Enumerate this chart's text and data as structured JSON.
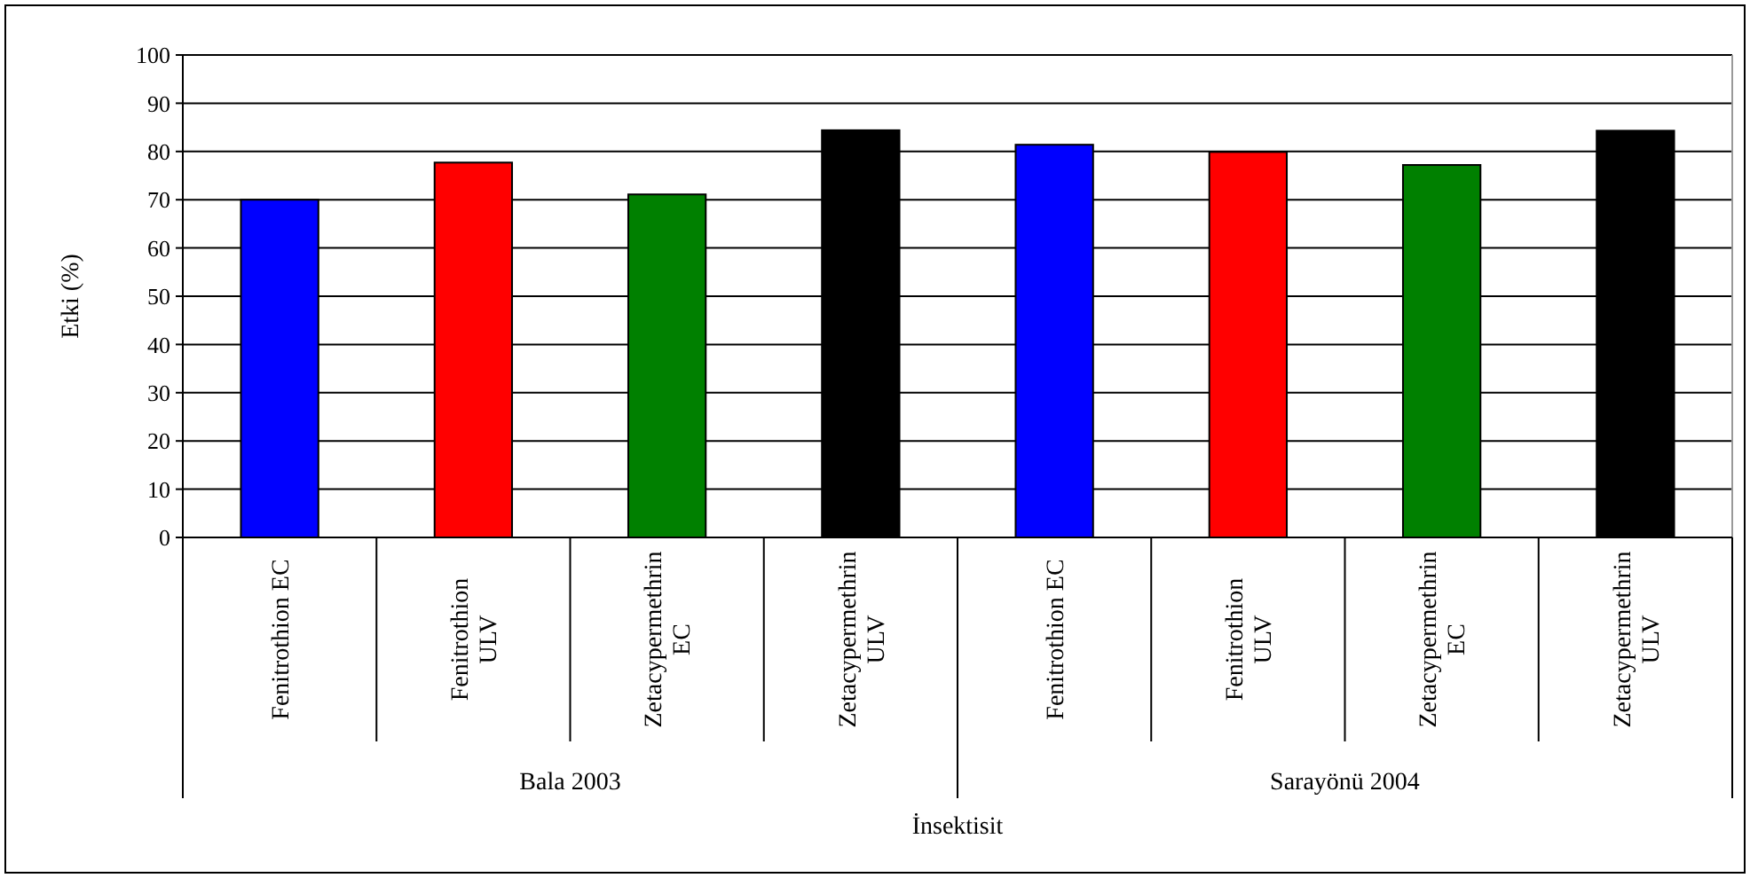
{
  "chart_data": {
    "type": "bar",
    "xlabel": "İnsektisit",
    "ylabel": "Etki (%)",
    "categories": [
      "Fenitrothion EC",
      "Fenitrothion ULV",
      "Zetacypermethrin EC",
      "Zetacypermethrin ULV",
      "Fenitrothion EC",
      "Fenitrothion ULV",
      "Zetacypermethrin EC",
      "Zetacypermethrin ULV"
    ],
    "values": [
      70,
      77.7,
      71.1,
      84.4,
      81.4,
      79.9,
      77.2,
      84.3
    ],
    "colors": [
      "#0000ff",
      "#ff0000",
      "#008000",
      "#000000",
      "#0000ff",
      "#ff0000",
      "#008000",
      "#000000"
    ],
    "ylim": [
      0,
      100
    ],
    "yticks": [
      0,
      10,
      20,
      30,
      40,
      50,
      60,
      70,
      80,
      90,
      100
    ],
    "grid": "y",
    "annotations": [
      "Bala 2003",
      "Sarayönü 2004"
    ]
  }
}
